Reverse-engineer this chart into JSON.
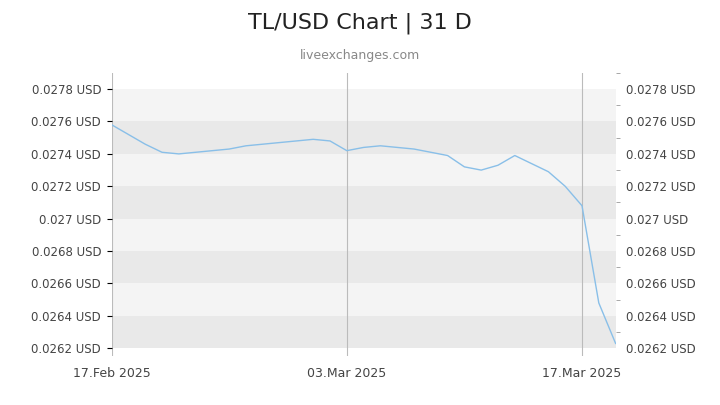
{
  "title": "TL/USD Chart | 31 D",
  "subtitle": "liveexchanges.com",
  "title_fontsize": 16,
  "subtitle_fontsize": 9,
  "line_color": "#89bfe8",
  "background_color": "#ffffff",
  "plot_bg_colors": [
    "#e9e9e9",
    "#f4f4f4"
  ],
  "ylim": [
    0.02615,
    0.0279
  ],
  "yticks": [
    0.0262,
    0.0264,
    0.0266,
    0.0268,
    0.027,
    0.0272,
    0.0274,
    0.0276,
    0.0278
  ],
  "ytick_labels": [
    "0.0262 USD",
    "0.0264 USD",
    "0.0266 USD",
    "0.0268 USD",
    "0.027 USD",
    "0.0272 USD",
    "0.0274 USD",
    "0.0276 USD",
    "0.0278 USD"
  ],
  "xtick_labels": [
    "17.Feb 2025",
    "03.Mar 2025",
    "17.Mar 2025"
  ],
  "vline_x": [
    0,
    14,
    28
  ],
  "x_data": [
    0,
    1,
    2,
    3,
    4,
    5,
    6,
    7,
    8,
    9,
    10,
    11,
    12,
    13,
    14,
    15,
    16,
    17,
    18,
    19,
    20,
    21,
    22,
    23,
    24,
    25,
    26,
    27,
    28,
    29,
    30
  ],
  "values": [
    0.02758,
    0.02752,
    0.02746,
    0.02741,
    0.0274,
    0.02741,
    0.02742,
    0.02743,
    0.02745,
    0.02746,
    0.02747,
    0.02748,
    0.02749,
    0.02748,
    0.02742,
    0.02744,
    0.02745,
    0.02744,
    0.02743,
    0.02741,
    0.02739,
    0.02732,
    0.0273,
    0.02733,
    0.02739,
    0.02734,
    0.02729,
    0.0272,
    0.02708,
    0.02648,
    0.02623
  ]
}
